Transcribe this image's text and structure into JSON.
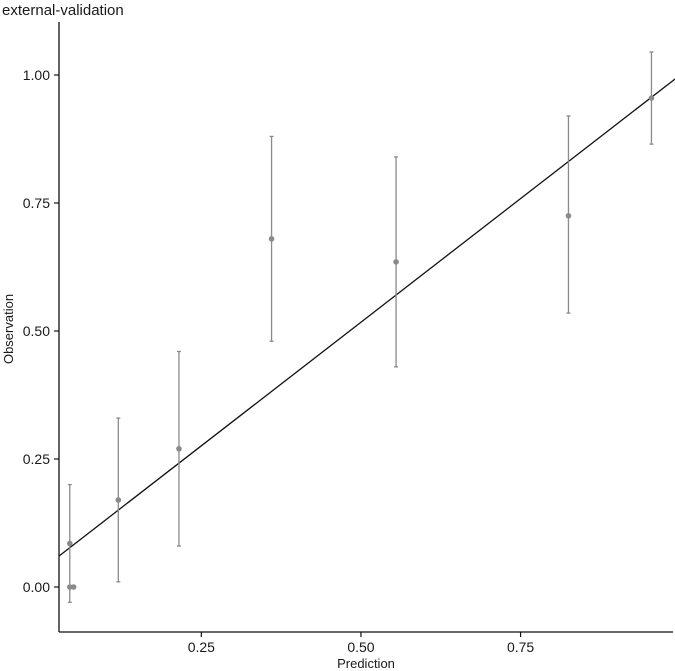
{
  "chart_data": {
    "type": "scatter",
    "title": "external-validation",
    "xlabel": "Prediction",
    "ylabel": "Observation",
    "xlim": [
      0.0,
      1.0
    ],
    "ylim": [
      -0.085,
      1.1
    ],
    "xticks": [
      0.25,
      0.5,
      0.75
    ],
    "xtick_labels": [
      "0.25",
      "0.50",
      "0.75"
    ],
    "yticks": [
      0.0,
      0.25,
      0.5,
      0.75,
      1.0
    ],
    "ytick_labels": [
      "0.00",
      "0.25",
      "0.50",
      "0.75",
      "1.00"
    ],
    "grid": false,
    "legend": "none",
    "points": [
      {
        "x": 0.044,
        "y": 0.085,
        "lo": -0.03,
        "hi": 0.2
      },
      {
        "x": 0.044,
        "y": 0.0
      },
      {
        "x": 0.05,
        "y": 0.0
      },
      {
        "x": 0.12,
        "y": 0.17,
        "lo": 0.01,
        "hi": 0.33
      },
      {
        "x": 0.215,
        "y": 0.27,
        "lo": 0.08,
        "hi": 0.46
      },
      {
        "x": 0.36,
        "y": 0.68,
        "lo": 0.48,
        "hi": 0.88
      },
      {
        "x": 0.555,
        "y": 0.635,
        "lo": 0.43,
        "hi": 0.84
      },
      {
        "x": 0.825,
        "y": 0.725,
        "lo": 0.535,
        "hi": 0.92
      },
      {
        "x": 0.955,
        "y": 0.955,
        "lo": 0.865,
        "hi": 1.045
      }
    ],
    "fit_line": {
      "x": [
        -0.02,
        1.0
      ],
      "y": [
        0.015,
        1.0
      ]
    },
    "colors": {
      "points": "#8a8a8a",
      "errorbars": "#8a8a8a",
      "line": "#111111",
      "axis": "#111111"
    }
  }
}
